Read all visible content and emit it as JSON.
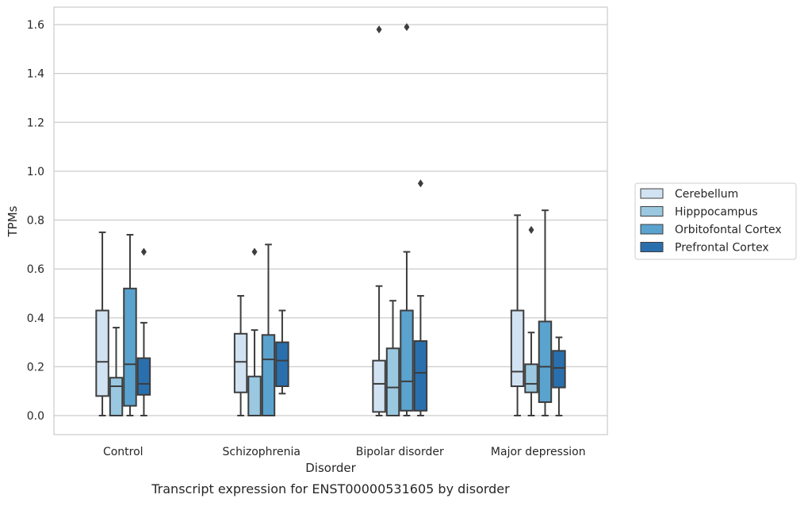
{
  "chart_data": {
    "type": "box",
    "title": "",
    "caption": "Transcript expression for ENST00000531605 by disorder",
    "xlabel": "Disorder",
    "ylabel": "TPMs",
    "ylim": [
      -0.08,
      1.67
    ],
    "yticks": [
      "0.0",
      "0.2",
      "0.4",
      "0.6",
      "0.8",
      "1.0",
      "1.2",
      "1.4",
      "1.6"
    ],
    "grid": "horizontal",
    "legend_position": "right",
    "categories": [
      "Control",
      "Schizophrenia",
      "Bipolar disorder",
      "Major depression"
    ],
    "series": [
      {
        "name": "Cerebellum",
        "color": "#d1e2f2",
        "boxes": [
          {
            "whisker_low": 0.0,
            "q1": 0.08,
            "median": 0.22,
            "q3": 0.43,
            "whisker_high": 0.75,
            "outliers": []
          },
          {
            "whisker_low": 0.0,
            "q1": 0.095,
            "median": 0.22,
            "q3": 0.335,
            "whisker_high": 0.49,
            "outliers": []
          },
          {
            "whisker_low": 0.0,
            "q1": 0.015,
            "median": 0.13,
            "q3": 0.225,
            "whisker_high": 0.53,
            "outliers": [
              1.58
            ]
          },
          {
            "whisker_low": 0.0,
            "q1": 0.12,
            "median": 0.18,
            "q3": 0.43,
            "whisker_high": 0.82,
            "outliers": []
          }
        ]
      },
      {
        "name": "Hipppocampus",
        "color": "#9ac8e0",
        "boxes": [
          {
            "whisker_low": 0.0,
            "q1": 0.0,
            "median": 0.12,
            "q3": 0.155,
            "whisker_high": 0.36,
            "outliers": []
          },
          {
            "whisker_low": 0.0,
            "q1": 0.0,
            "median": 0.0,
            "q3": 0.16,
            "whisker_high": 0.35,
            "outliers": [
              0.67
            ]
          },
          {
            "whisker_low": 0.0,
            "q1": 0.0,
            "median": 0.115,
            "q3": 0.275,
            "whisker_high": 0.47,
            "outliers": []
          },
          {
            "whisker_low": 0.0,
            "q1": 0.095,
            "median": 0.13,
            "q3": 0.21,
            "whisker_high": 0.34,
            "outliers": [
              0.76
            ]
          }
        ]
      },
      {
        "name": "Orbitofontal Cortex",
        "color": "#5ba3cf",
        "boxes": [
          {
            "whisker_low": 0.0,
            "q1": 0.04,
            "median": 0.21,
            "q3": 0.52,
            "whisker_high": 0.74,
            "outliers": []
          },
          {
            "whisker_low": 0.0,
            "q1": 0.0,
            "median": 0.23,
            "q3": 0.33,
            "whisker_high": 0.7,
            "outliers": []
          },
          {
            "whisker_low": 0.0,
            "q1": 0.02,
            "median": 0.14,
            "q3": 0.43,
            "whisker_high": 0.67,
            "outliers": [
              1.59
            ]
          },
          {
            "whisker_low": 0.0,
            "q1": 0.055,
            "median": 0.2,
            "q3": 0.385,
            "whisker_high": 0.84,
            "outliers": []
          }
        ]
      },
      {
        "name": "Prefrontal Cortex",
        "color": "#2a6fad",
        "boxes": [
          {
            "whisker_low": 0.0,
            "q1": 0.085,
            "median": 0.13,
            "q3": 0.235,
            "whisker_high": 0.38,
            "outliers": [
              0.67
            ]
          },
          {
            "whisker_low": 0.09,
            "q1": 0.12,
            "median": 0.225,
            "q3": 0.3,
            "whisker_high": 0.43,
            "outliers": []
          },
          {
            "whisker_low": 0.0,
            "q1": 0.02,
            "median": 0.175,
            "q3": 0.305,
            "whisker_high": 0.49,
            "outliers": [
              0.95
            ]
          },
          {
            "whisker_low": 0.0,
            "q1": 0.115,
            "median": 0.195,
            "q3": 0.265,
            "whisker_high": 0.32,
            "outliers": []
          }
        ]
      }
    ]
  }
}
